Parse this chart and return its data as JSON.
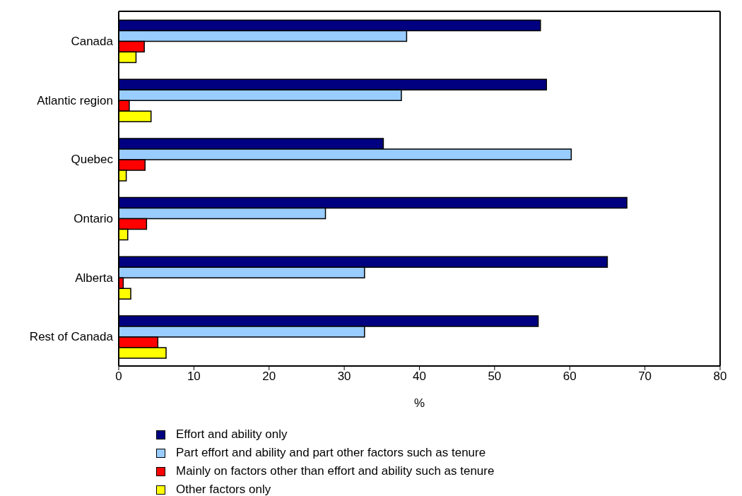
{
  "chart_data": {
    "type": "bar",
    "orientation": "horizontal",
    "categories": [
      "Canada",
      "Atlantic region",
      "Quebec",
      "Ontario",
      "Alberta",
      "Rest of Canada"
    ],
    "series": [
      {
        "name": "Effort and ability only",
        "color": "#000080",
        "values": [
          56.1,
          56.9,
          35.2,
          67.6,
          65.0,
          55.8
        ]
      },
      {
        "name": "Part effort and ability and part other factors such as tenure",
        "color": "#99ccff",
        "values": [
          38.3,
          37.6,
          60.2,
          27.5,
          32.7,
          32.7
        ]
      },
      {
        "name": "Mainly on factors other than effort and ability such as tenure",
        "color": "#ff0000",
        "values": [
          3.4,
          1.4,
          3.5,
          3.7,
          0.6,
          5.2
        ]
      },
      {
        "name": "Other factors only",
        "color": "#ffff00",
        "values": [
          2.3,
          4.3,
          1.0,
          1.2,
          1.6,
          6.3
        ]
      }
    ],
    "xlabel": "%",
    "xlim": [
      0,
      80
    ],
    "xticks": [
      0,
      10,
      20,
      30,
      40,
      50,
      60,
      70,
      80
    ],
    "legend": "bottom"
  }
}
